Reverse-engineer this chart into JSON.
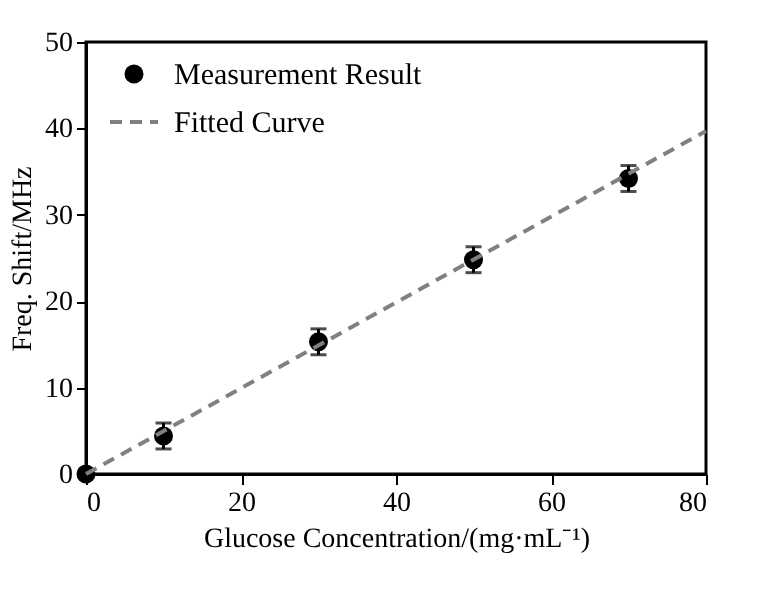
{
  "chart_data": {
    "type": "scatter",
    "xlabel": "Glucose Concentration/(mg·mL⁻¹)",
    "ylabel": "Freq. Shift/MHz",
    "xlim": [
      0,
      80
    ],
    "xticks": [
      0,
      20,
      40,
      60,
      80
    ],
    "ylim": [
      0,
      50
    ],
    "yticks": [
      0,
      10,
      20,
      30,
      40,
      50
    ],
    "legend": "top left",
    "grid": false,
    "series": [
      {
        "name": "Measurement Result",
        "marker": "circle",
        "color": "#000000",
        "x": [
          0,
          10,
          30,
          50,
          70
        ],
        "values": [
          0,
          4.4,
          15.3,
          24.8,
          34.2
        ],
        "errors": [
          null,
          1.5,
          1.5,
          1.5,
          1.5
        ]
      },
      {
        "name": "Fitted Curve",
        "type": "line",
        "line_style": "dashed",
        "marker": "none",
        "color": "#808080",
        "x": [
          0,
          80
        ],
        "values": [
          0,
          39.7
        ]
      }
    ]
  }
}
